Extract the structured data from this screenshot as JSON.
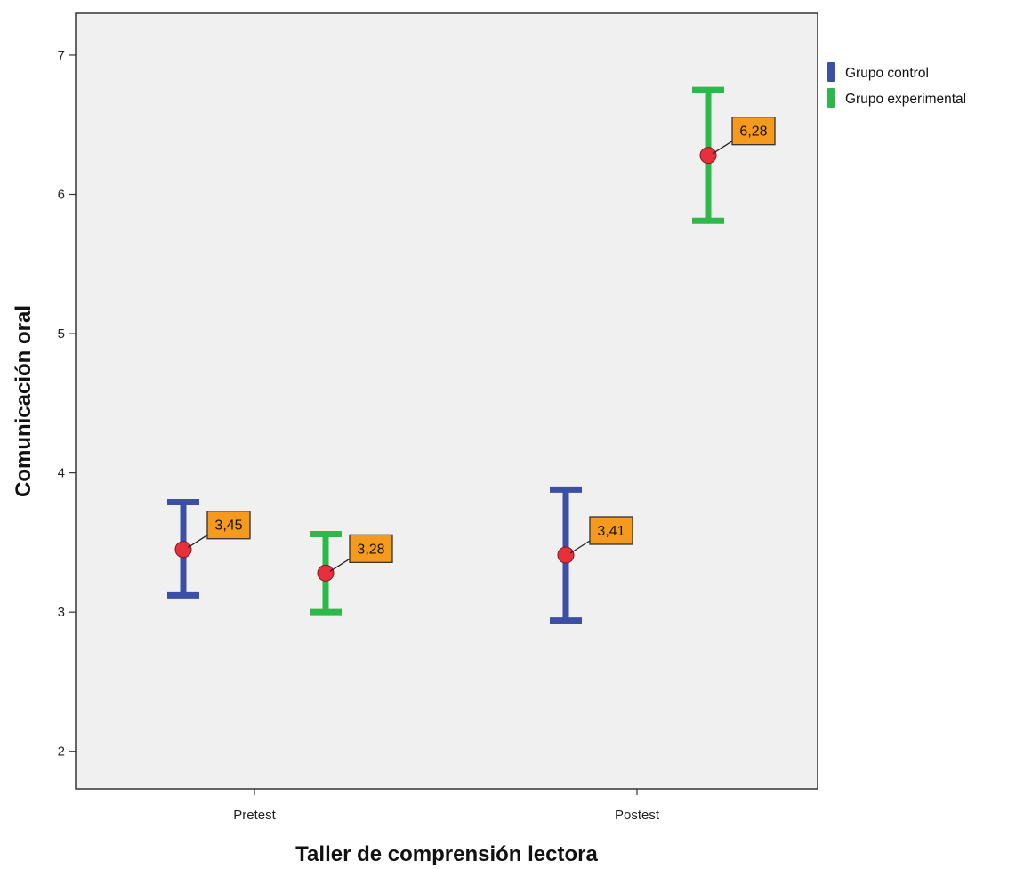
{
  "chart_data": {
    "type": "errorbar",
    "categories": [
      "Pretest",
      "Postest"
    ],
    "series": [
      {
        "name": "Grupo control",
        "color": "#3b4fa6",
        "points": [
          {
            "category": "Pretest",
            "mean": 3.45,
            "lower": 3.12,
            "upper": 3.79,
            "label": "3,45"
          },
          {
            "category": "Postest",
            "mean": 3.41,
            "lower": 2.94,
            "upper": 3.88,
            "label": "3,41"
          }
        ]
      },
      {
        "name": "Grupo experimental",
        "color": "#2fb84a",
        "points": [
          {
            "category": "Pretest",
            "mean": 3.28,
            "lower": 3.0,
            "upper": 3.56,
            "label": "3,28"
          },
          {
            "category": "Postest",
            "mean": 6.28,
            "lower": 5.81,
            "upper": 6.75,
            "label": "6,28"
          }
        ]
      }
    ],
    "xlabel": "Taller de comprensión lectora",
    "ylabel": "Comunicación oral",
    "ylim": [
      1.73,
      7.3
    ],
    "yticks": [
      2,
      3,
      4,
      5,
      6,
      7
    ],
    "grid": false,
    "legend": "top-right",
    "mean_marker_color": "#e8303c",
    "label_box_color": "#f59a1c",
    "plot_background": "#f0f0f0"
  }
}
